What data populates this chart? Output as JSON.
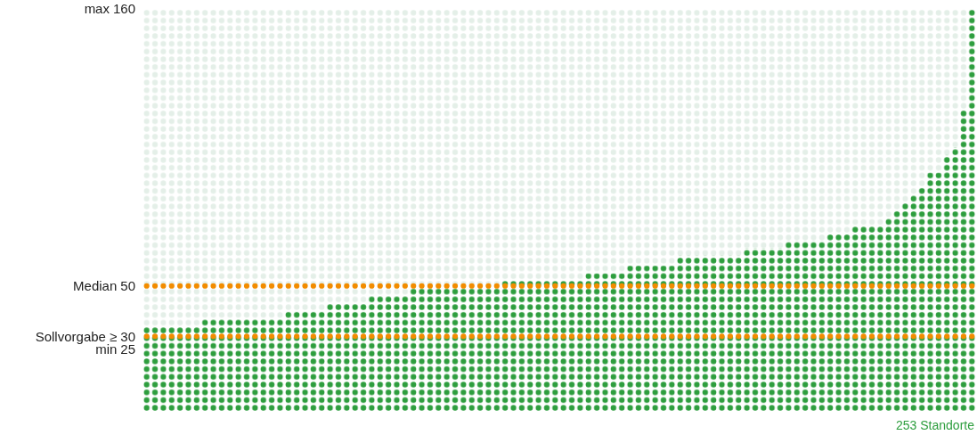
{
  "chart_data": {
    "type": "bar",
    "xlabel": "253 Standorte",
    "color": "#2e9e3e",
    "categories": [
      null,
      null,
      null,
      null,
      null,
      null,
      null,
      null,
      null,
      null,
      null,
      null,
      null,
      null,
      null,
      null,
      null,
      null,
      null,
      null,
      null,
      null,
      null,
      null,
      null,
      null,
      null,
      null,
      null,
      null,
      null,
      null,
      null,
      null,
      null,
      null,
      null,
      null,
      null,
      null,
      null,
      null,
      null,
      null,
      null,
      null,
      null,
      null,
      null,
      null,
      null,
      null,
      null,
      null,
      null,
      null,
      null,
      null,
      null,
      null,
      null,
      null,
      null,
      null,
      null,
      null,
      null,
      null,
      null,
      null,
      null,
      null,
      null,
      null,
      null,
      null,
      null,
      null,
      null,
      null,
      null,
      null,
      null,
      null,
      null,
      null,
      null,
      null,
      null,
      null,
      null,
      null,
      null,
      null,
      null,
      null,
      null,
      null,
      null,
      null
    ],
    "values": [
      34,
      34,
      34,
      34,
      34,
      34,
      34,
      37,
      37,
      37,
      37,
      37,
      37,
      37,
      37,
      37,
      37,
      40,
      40,
      40,
      40,
      40,
      43,
      43,
      43,
      43,
      43,
      46,
      46,
      46,
      46,
      46,
      49,
      49,
      49,
      49,
      49,
      49,
      49,
      49,
      49,
      49,
      49,
      52,
      52,
      52,
      52,
      52,
      52,
      52,
      52,
      52,
      52,
      55,
      55,
      55,
      55,
      55,
      58,
      58,
      58,
      58,
      58,
      58,
      62,
      62,
      62,
      62,
      62,
      62,
      62,
      62,
      65,
      65,
      65,
      65,
      65,
      68,
      68,
      68,
      68,
      68,
      71,
      71,
      71,
      74,
      74,
      74,
      74,
      77,
      80,
      83,
      86,
      89,
      95,
      95,
      102,
      105,
      120,
      160
    ],
    "ylim": [
      0,
      160
    ],
    "yticks": [
      160,
      50,
      30,
      25
    ],
    "annotations": [
      "max",
      "Median",
      "Sollvorgabe ≥",
      "min"
    ],
    "ref_lines": [
      {
        "axis": "y",
        "value": 50,
        "color": "#f28c00"
      },
      {
        "axis": "y",
        "value": 30,
        "color": "#f28c00"
      }
    ]
  }
}
